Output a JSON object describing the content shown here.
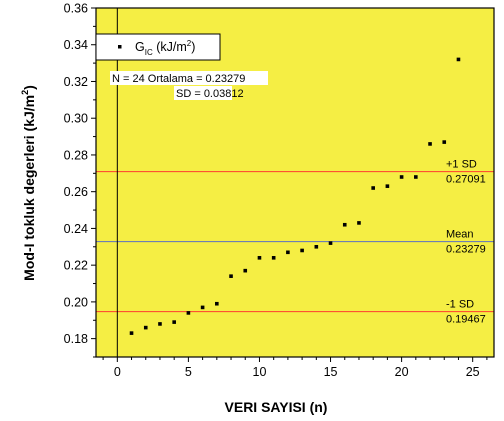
{
  "chart_data": {
    "type": "scatter",
    "xlabel": "VERI SAYISI (n)",
    "ylabel_main": "Mod-I tokluk degerleri (kJ/m",
    "ylabel_sup": "2",
    "ylabel_close": ")",
    "xlim": [
      -1.5,
      26.5
    ],
    "ylim": [
      0.17,
      0.36
    ],
    "xticks": [
      0,
      5,
      10,
      15,
      20,
      25
    ],
    "yticks": [
      "0.18",
      "0.20",
      "0.22",
      "0.24",
      "0.26",
      "0.28",
      "0.30",
      "0.32",
      "0.34",
      "0.36"
    ],
    "plot_background": "#f5ee44",
    "series": [
      {
        "name_main": "G",
        "name_sub": "IC",
        "name_rest": " (kJ/m",
        "name_sup": "2",
        "name_close": ")",
        "x": [
          1,
          2,
          3,
          4,
          5,
          6,
          7,
          8,
          9,
          10,
          11,
          12,
          13,
          14,
          15,
          16,
          17,
          18,
          19,
          20,
          21,
          22,
          23,
          24
        ],
        "y": [
          0.183,
          0.186,
          0.188,
          0.189,
          0.194,
          0.197,
          0.199,
          0.214,
          0.217,
          0.224,
          0.224,
          0.227,
          0.228,
          0.23,
          0.232,
          0.242,
          0.243,
          0.262,
          0.263,
          0.268,
          0.268,
          0.286,
          0.287,
          0.332
        ],
        "marker_color": "#000000"
      }
    ],
    "stats_line1": "N = 24 Ortalama = 0.23279",
    "stats_line2": "SD = 0.03812",
    "reference_lines": [
      {
        "label": "+1 SD",
        "value_text": "0.27091",
        "value": 0.27091,
        "color": "#ff3b2f"
      },
      {
        "label": "Mean",
        "value_text": "0.23279",
        "value": 0.23279,
        "color": "#5a6fc4"
      },
      {
        "label": "-1 SD",
        "value_text": "0.19467",
        "value": 0.19467,
        "color": "#ff3b2f"
      }
    ]
  }
}
